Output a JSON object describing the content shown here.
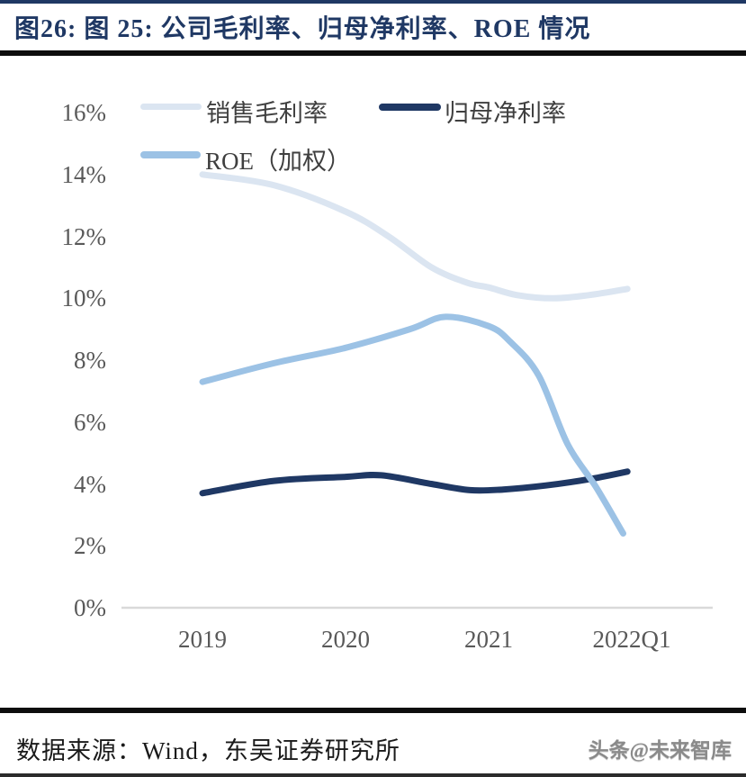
{
  "title": "图26:  图 25:  公司毛利率、归母净利率、ROE 情况",
  "footer": {
    "source": "数据来源：Wind，东吴证券研究所",
    "watermark": "头条@未来智库"
  },
  "colors": {
    "accent_navy": "#1f3864",
    "rule_black": "#0d0d0d",
    "axis_line": "#d9d9d9",
    "axis_label": "#595959",
    "legend_label": "#3f3f3f"
  },
  "chart_data": {
    "type": "line",
    "title": "公司毛利率、归母净利率、ROE 情况",
    "categories": [
      "2019",
      "2020",
      "2021",
      "2022Q1"
    ],
    "series": [
      {
        "name": "销售毛利率",
        "color": "#dbe5f1",
        "values": [
          14.0,
          12.8,
          10.4,
          10.3
        ],
        "shape_points": [
          [
            0,
            14.0
          ],
          [
            0.5,
            13.65
          ],
          [
            1,
            12.8
          ],
          [
            1.3,
            12.0
          ],
          [
            1.6,
            11.0
          ],
          [
            1.85,
            10.5
          ],
          [
            2,
            10.35
          ],
          [
            2.2,
            10.1
          ],
          [
            2.45,
            10.0
          ],
          [
            2.7,
            10.1
          ],
          [
            2.97,
            10.3
          ]
        ]
      },
      {
        "name": "归母净利率",
        "color": "#1f3864",
        "values": [
          3.7,
          4.2,
          3.8,
          4.4
        ],
        "shape_points": [
          [
            0,
            3.7
          ],
          [
            0.5,
            4.1
          ],
          [
            1,
            4.23
          ],
          [
            1.25,
            4.28
          ],
          [
            1.6,
            4.0
          ],
          [
            1.87,
            3.8
          ],
          [
            2.1,
            3.82
          ],
          [
            2.4,
            3.95
          ],
          [
            2.7,
            4.15
          ],
          [
            2.97,
            4.4
          ]
        ]
      },
      {
        "name": "ROE（加权）",
        "color": "#9cc2e5",
        "values": [
          7.3,
          8.4,
          9.1,
          2.4
        ],
        "shape_points": [
          [
            0,
            7.3
          ],
          [
            0.5,
            7.9
          ],
          [
            1,
            8.4
          ],
          [
            1.45,
            9.0
          ],
          [
            1.7,
            9.4
          ],
          [
            2,
            9.1
          ],
          [
            2.15,
            8.6
          ],
          [
            2.35,
            7.5
          ],
          [
            2.55,
            5.3
          ],
          [
            2.75,
            3.9
          ],
          [
            2.94,
            2.4
          ]
        ]
      }
    ],
    "ylim": [
      0,
      16
    ],
    "ytick_step": 2,
    "ytick_labels": [
      "16%",
      "14%",
      "12%",
      "10%",
      "8%",
      "6%",
      "4%",
      "2%",
      "0%"
    ],
    "xlabel": "",
    "ylabel": "",
    "grid": false,
    "legend_position": "top-left"
  }
}
